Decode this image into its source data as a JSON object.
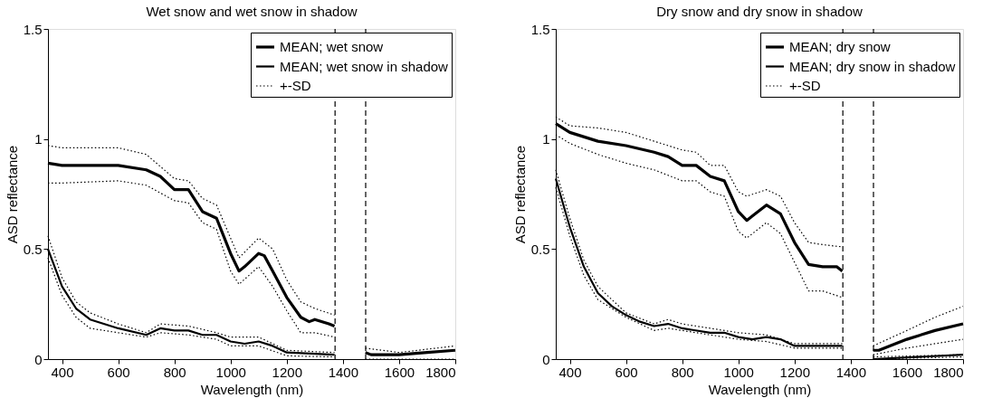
{
  "chart_data": [
    {
      "type": "line",
      "title": "Wet snow and wet snow in shadow",
      "xlabel": "Wavelength (nm)",
      "ylabel": "ASD reflectance",
      "xlim": [
        350,
        1800
      ],
      "xticks": [
        400,
        600,
        800,
        1000,
        1200,
        1400,
        1600,
        1800
      ],
      "ylim": [
        0,
        1.5
      ],
      "yticks": [
        0,
        0.5,
        1,
        1.5
      ],
      "grid": false,
      "legend": "top right",
      "marker": "none",
      "ref_lines": [
        {
          "axis": "x",
          "value": 1372,
          "line_style": "dashed"
        },
        {
          "axis": "x",
          "value": 1481,
          "line_style": "dashed"
        }
      ],
      "series": [
        {
          "name": "MEAN; wet snow",
          "color": "#000000",
          "line_style": "solid",
          "x": [
            350,
            400,
            500,
            600,
            700,
            750,
            800,
            850,
            900,
            950,
            1000,
            1030,
            1050,
            1100,
            1120,
            1150,
            1200,
            1250,
            1280,
            1300,
            1350,
            1370,
            1420,
            1480,
            1500,
            1600,
            1700,
            1800
          ],
          "values": [
            0.89,
            0.88,
            0.88,
            0.88,
            0.86,
            0.83,
            0.77,
            0.77,
            0.67,
            0.64,
            0.48,
            0.4,
            0.42,
            0.48,
            0.47,
            0.4,
            0.28,
            0.19,
            0.17,
            0.18,
            0.16,
            0.15,
            null,
            0.03,
            0.02,
            0.02,
            0.03,
            0.04
          ]
        },
        {
          "name": "MEAN; wet snow in shadow",
          "color": "#000000",
          "line_style": "solid",
          "x": [
            350,
            400,
            450,
            500,
            600,
            700,
            750,
            800,
            850,
            900,
            950,
            1000,
            1050,
            1100,
            1150,
            1200,
            1370
          ],
          "values": [
            0.5,
            0.33,
            0.23,
            0.18,
            0.14,
            0.11,
            0.14,
            0.13,
            0.13,
            0.11,
            0.11,
            0.08,
            0.07,
            0.08,
            0.06,
            0.03,
            0.02
          ]
        },
        {
          "name": "+-SD",
          "color": "#000000",
          "line_style": "dotted",
          "x": [
            350,
            400,
            600,
            700,
            800,
            850,
            900,
            950,
            1000,
            1030,
            1100,
            1150,
            1200,
            1250,
            1300,
            1370,
            1420,
            1480,
            1600,
            1800
          ],
          "values": [
            0.97,
            0.96,
            0.96,
            0.93,
            0.82,
            0.81,
            0.73,
            0.7,
            0.55,
            0.46,
            0.55,
            0.5,
            0.36,
            0.26,
            0.23,
            0.2,
            null,
            0.05,
            0.03,
            0.06
          ]
        },
        {
          "color": "#000000",
          "line_style": "dotted",
          "x": [
            350,
            400,
            600,
            700,
            800,
            850,
            900,
            950,
            1000,
            1030,
            1100,
            1150,
            1200,
            1250,
            1300,
            1370,
            1420,
            1480,
            1800
          ],
          "values": [
            0.8,
            0.8,
            0.81,
            0.79,
            0.72,
            0.71,
            0.62,
            0.59,
            0.4,
            0.34,
            0.42,
            0.33,
            0.22,
            0.12,
            0.12,
            0.1,
            null,
            0.0,
            0.0
          ]
        },
        {
          "color": "#000000",
          "line_style": "dotted",
          "x": [
            350,
            400,
            450,
            500,
            600,
            700,
            750,
            850,
            950,
            1000,
            1100,
            1200,
            1370
          ],
          "values": [
            0.56,
            0.37,
            0.26,
            0.21,
            0.16,
            0.12,
            0.16,
            0.15,
            0.12,
            0.1,
            0.1,
            0.04,
            0.03
          ]
        },
        {
          "color": "#000000",
          "line_style": "dotted",
          "x": [
            350,
            400,
            450,
            500,
            600,
            700,
            750,
            850,
            950,
            1000,
            1100,
            1200,
            1370
          ],
          "values": [
            0.46,
            0.29,
            0.19,
            0.14,
            0.12,
            0.1,
            0.12,
            0.11,
            0.09,
            0.06,
            0.06,
            0.015,
            0.01
          ]
        }
      ]
    },
    {
      "type": "line",
      "title": "Dry snow and dry snow in shadow",
      "xlabel": "Wavelength (nm)",
      "ylabel": "ASD reflectance",
      "xlim": [
        350,
        1800
      ],
      "xticks": [
        400,
        600,
        800,
        1000,
        1200,
        1400,
        1600,
        1800
      ],
      "ylim": [
        0,
        1.5
      ],
      "yticks": [
        0,
        0.5,
        1,
        1.5
      ],
      "grid": false,
      "legend": "top right",
      "marker": "none",
      "ref_lines": [
        {
          "axis": "x",
          "value": 1372,
          "line_style": "dashed"
        },
        {
          "axis": "x",
          "value": 1481,
          "line_style": "dashed"
        }
      ],
      "series": [
        {
          "name": "MEAN; dry snow",
          "color": "#000000",
          "line_style": "solid",
          "x": [
            350,
            400,
            500,
            600,
            700,
            750,
            800,
            850,
            900,
            950,
            1000,
            1030,
            1050,
            1100,
            1150,
            1200,
            1250,
            1300,
            1350,
            1370,
            1420,
            1480,
            1500,
            1600,
            1700,
            1800
          ],
          "values": [
            1.07,
            1.03,
            0.99,
            0.97,
            0.94,
            0.92,
            0.88,
            0.88,
            0.83,
            0.81,
            0.67,
            0.63,
            0.65,
            0.7,
            0.66,
            0.53,
            0.43,
            0.42,
            0.42,
            0.4,
            null,
            0.04,
            0.04,
            0.09,
            0.13,
            0.16
          ]
        },
        {
          "name": "MEAN; dry snow in shadow",
          "color": "#000000",
          "line_style": "solid",
          "x": [
            350,
            400,
            450,
            500,
            550,
            600,
            650,
            700,
            750,
            800,
            900,
            950,
            1000,
            1050,
            1100,
            1150,
            1200,
            1370,
            1420,
            1480,
            1800
          ],
          "values": [
            0.82,
            0.6,
            0.42,
            0.3,
            0.24,
            0.2,
            0.17,
            0.15,
            0.16,
            0.14,
            0.12,
            0.12,
            0.1,
            0.09,
            0.1,
            0.09,
            0.06,
            0.06,
            null,
            0.0,
            0.02
          ]
        },
        {
          "name": "+-SD",
          "color": "#000000",
          "line_style": "dotted",
          "x": [
            350,
            400,
            500,
            600,
            700,
            800,
            850,
            900,
            950,
            1000,
            1030,
            1100,
            1150,
            1200,
            1250,
            1300,
            1370,
            1420,
            1480,
            1600,
            1700,
            1800
          ],
          "values": [
            1.1,
            1.06,
            1.05,
            1.03,
            0.99,
            0.95,
            0.94,
            0.88,
            0.88,
            0.76,
            0.74,
            0.77,
            0.74,
            0.62,
            0.53,
            0.52,
            0.51,
            null,
            0.06,
            0.13,
            0.19,
            0.24
          ]
        },
        {
          "color": "#000000",
          "line_style": "dotted",
          "x": [
            350,
            400,
            500,
            600,
            700,
            800,
            850,
            900,
            950,
            1000,
            1030,
            1100,
            1150,
            1200,
            1250,
            1300,
            1370,
            1420,
            1480,
            1600,
            1700,
            1800
          ],
          "values": [
            1.02,
            0.98,
            0.93,
            0.89,
            0.86,
            0.81,
            0.81,
            0.76,
            0.74,
            0.58,
            0.55,
            0.62,
            0.57,
            0.44,
            0.31,
            0.31,
            0.28,
            null,
            0.02,
            0.05,
            0.07,
            0.09
          ]
        },
        {
          "color": "#000000",
          "line_style": "dotted",
          "x": [
            350,
            400,
            450,
            500,
            600,
            700,
            750,
            800,
            900,
            1000,
            1100,
            1200,
            1370,
            1420,
            1480,
            1800
          ],
          "values": [
            0.86,
            0.64,
            0.45,
            0.33,
            0.21,
            0.16,
            0.18,
            0.16,
            0.14,
            0.12,
            0.11,
            0.07,
            0.07,
            null,
            0.01,
            0.02
          ]
        },
        {
          "color": "#000000",
          "line_style": "dotted",
          "x": [
            350,
            400,
            450,
            500,
            600,
            700,
            750,
            800,
            900,
            1000,
            1100,
            1200,
            1370,
            1420,
            1480,
            1800
          ],
          "values": [
            0.78,
            0.56,
            0.38,
            0.27,
            0.19,
            0.13,
            0.14,
            0.13,
            0.11,
            0.09,
            0.08,
            0.05,
            0.05,
            null,
            0.0,
            0.01
          ]
        }
      ]
    }
  ]
}
